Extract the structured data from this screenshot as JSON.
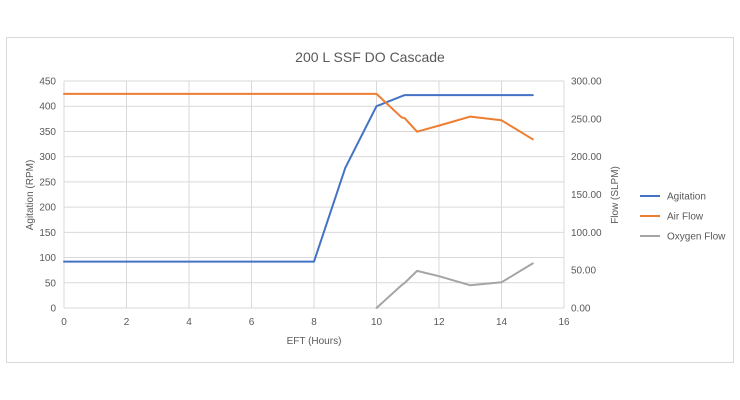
{
  "chart_data": {
    "type": "line",
    "title": "200 L SSF DO Cascade",
    "xlabel": "EFT (Hours)",
    "ylabel": "Agitation (RPM)",
    "y2label": "Flow (SLPM)",
    "xlim": [
      0,
      16
    ],
    "ylim": [
      0,
      450
    ],
    "y2lim": [
      0,
      300
    ],
    "x_ticks": [
      "0",
      "2",
      "4",
      "6",
      "8",
      "10",
      "12",
      "14",
      "16"
    ],
    "y_ticks": [
      "0",
      "50",
      "100",
      "150",
      "200",
      "250",
      "300",
      "350",
      "400",
      "450"
    ],
    "y2_ticks": [
      "0.00",
      "50.00",
      "100.00",
      "150.00",
      "200.00",
      "250.00",
      "300.00"
    ],
    "grid": true,
    "legend_position": "right",
    "series": [
      {
        "name": "Agitation",
        "axis": "left",
        "color": "#4472c4",
        "x": [
          0,
          8,
          9,
          10,
          10.9,
          15
        ],
        "y": [
          92,
          92,
          278,
          400,
          422,
          422
        ]
      },
      {
        "name": "Air Flow",
        "axis": "right",
        "color": "#ed7d31",
        "x": [
          0,
          10,
          10.8,
          10.9,
          11.3,
          12,
          13,
          14,
          15
        ],
        "y": [
          283,
          283,
          252,
          251,
          233,
          241,
          253,
          248,
          223
        ]
      },
      {
        "name": "Oxygen Flow",
        "axis": "right",
        "color": "#a5a5a5",
        "x": [
          10,
          10.8,
          10.9,
          11.3,
          12,
          13,
          14,
          15
        ],
        "y": [
          0,
          30,
          33,
          49,
          42,
          30,
          34,
          59
        ]
      }
    ]
  }
}
